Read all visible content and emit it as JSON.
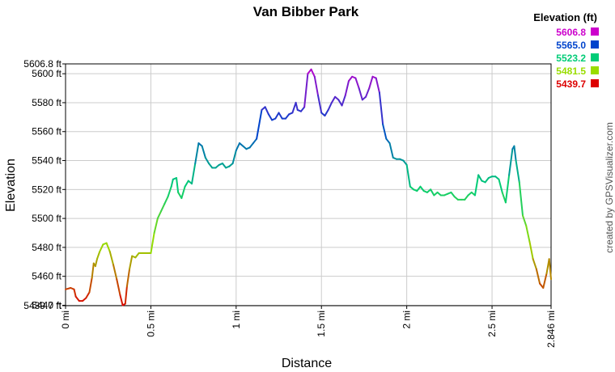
{
  "chart_data": {
    "type": "line",
    "title": "Van Bibber Park",
    "xlabel": "Distance",
    "ylabel": "Elevation",
    "xlim": [
      0,
      2.846
    ],
    "ylim": [
      5439.7,
      5606.8
    ],
    "x_ticks": [
      0,
      0.5,
      1,
      1.5,
      2,
      2.5,
      2.846
    ],
    "x_tick_labels": [
      "0 mi",
      "0.5 mi",
      "1 mi",
      "1.5 mi",
      "2 mi",
      "2.5 mi",
      "2.846 mi"
    ],
    "y_ticks": [
      5439.7,
      5440,
      5460,
      5480,
      5500,
      5520,
      5540,
      5560,
      5580,
      5600,
      5606.8
    ],
    "y_tick_labels": [
      "5439.7 ft",
      "5440 ft",
      "5460 ft",
      "5480 ft",
      "5500 ft",
      "5520 ft",
      "5540 ft",
      "5560 ft",
      "5580 ft",
      "5600 ft",
      "5606.8 ft"
    ],
    "grid": true,
    "legend_position": "top-right",
    "legend_title": "Elevation (ft)",
    "legend": [
      {
        "label": "5606.8",
        "color": "#cc00cc"
      },
      {
        "label": "5565.0",
        "color": "#0044cc"
      },
      {
        "label": "5523.2",
        "color": "#00cc77"
      },
      {
        "label": "5481.5",
        "color": "#99dd00"
      },
      {
        "label": "5439.7",
        "color": "#dd0000"
      }
    ],
    "credit": "created by GPSVisualizer.com",
    "series": [
      {
        "x": [
          0,
          0.03,
          0.05,
          0.06,
          0.08,
          0.1,
          0.12,
          0.14,
          0.155,
          0.165,
          0.175,
          0.185,
          0.2,
          0.22,
          0.24,
          0.26,
          0.28,
          0.3,
          0.32,
          0.335,
          0.35,
          0.36,
          0.375,
          0.39,
          0.41,
          0.43,
          0.46,
          0.49,
          0.5,
          0.52,
          0.54,
          0.56,
          0.58,
          0.6,
          0.62,
          0.63,
          0.65,
          0.66,
          0.68,
          0.7,
          0.72,
          0.74,
          0.76,
          0.78,
          0.8,
          0.82,
          0.84,
          0.86,
          0.88,
          0.9,
          0.92,
          0.94,
          0.96,
          0.98,
          1.0,
          1.02,
          1.04,
          1.06,
          1.08,
          1.1,
          1.12,
          1.15,
          1.17,
          1.19,
          1.21,
          1.23,
          1.25,
          1.27,
          1.29,
          1.31,
          1.33,
          1.35,
          1.36,
          1.38,
          1.4,
          1.42,
          1.44,
          1.46,
          1.48,
          1.5,
          1.52,
          1.54,
          1.56,
          1.58,
          1.6,
          1.62,
          1.64,
          1.66,
          1.68,
          1.7,
          1.72,
          1.74,
          1.76,
          1.78,
          1.8,
          1.82,
          1.84,
          1.86,
          1.88,
          1.9,
          1.92,
          1.94,
          1.96,
          1.98,
          2.0,
          2.02,
          2.04,
          2.06,
          2.08,
          2.1,
          2.12,
          2.14,
          2.16,
          2.18,
          2.2,
          2.22,
          2.24,
          2.26,
          2.28,
          2.3,
          2.32,
          2.34,
          2.36,
          2.38,
          2.4,
          2.42,
          2.44,
          2.46,
          2.48,
          2.5,
          2.52,
          2.54,
          2.56,
          2.58,
          2.6,
          2.62,
          2.63,
          2.64,
          2.66,
          2.68,
          2.7,
          2.72,
          2.74,
          2.76,
          2.78,
          2.8,
          2.82,
          2.835,
          2.846
        ],
        "y": [
          5451,
          5452,
          5451,
          5446,
          5443,
          5443,
          5445,
          5449,
          5459,
          5469,
          5467,
          5472,
          5477,
          5482,
          5483,
          5477,
          5468,
          5458,
          5447,
          5440,
          5441,
          5453,
          5465,
          5474,
          5473,
          5476,
          5476,
          5476,
          5476,
          5490,
          5500,
          5505,
          5510,
          5515,
          5522,
          5527,
          5528,
          5518,
          5514,
          5522,
          5526,
          5524,
          5538,
          5552,
          5550,
          5542,
          5538,
          5535,
          5535,
          5537,
          5538,
          5535,
          5536,
          5538,
          5547,
          5552,
          5550,
          5548,
          5549,
          5552,
          5555,
          5575,
          5577,
          5572,
          5568,
          5569,
          5573,
          5569,
          5569,
          5572,
          5573,
          5580,
          5575,
          5574,
          5577,
          5600,
          5603,
          5598,
          5585,
          5573,
          5571,
          5575,
          5580,
          5584,
          5582,
          5578,
          5585,
          5595,
          5598,
          5597,
          5590,
          5582,
          5584,
          5590,
          5598,
          5597,
          5587,
          5565,
          5555,
          5552,
          5542,
          5541,
          5541,
          5540,
          5537,
          5522,
          5520,
          5519,
          5522,
          5519,
          5518,
          5520,
          5516,
          5518,
          5516,
          5516,
          5517,
          5518,
          5515,
          5513,
          5513,
          5513,
          5516,
          5518,
          5516,
          5530,
          5526,
          5525,
          5528,
          5529,
          5529,
          5527,
          5518,
          5511,
          5530,
          5548,
          5550,
          5540,
          5525,
          5502,
          5495,
          5484,
          5472,
          5465,
          5455,
          5452,
          5462,
          5472,
          5458
        ]
      }
    ]
  }
}
